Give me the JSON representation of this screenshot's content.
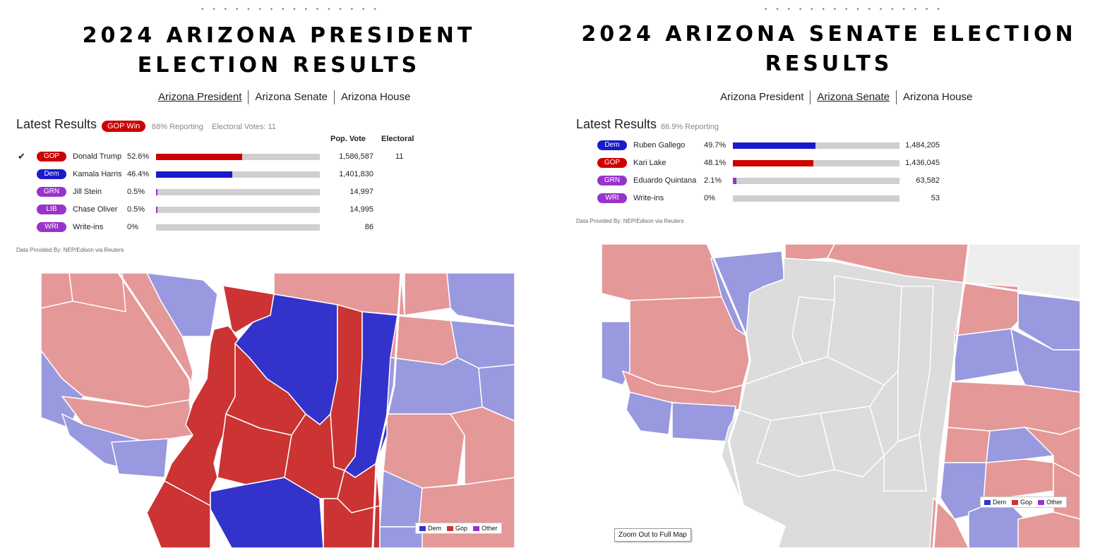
{
  "colors": {
    "dem": "#1a1acc",
    "gop": "#cc0000",
    "grn": "#9933cc",
    "lib": "#9933cc",
    "wri": "#9933cc",
    "gop_dark": "#cc3333",
    "gop_light": "#e59898",
    "dem_dark": "#3333cc",
    "dem_light": "#9999e0",
    "none": "#dcdcdc"
  },
  "president": {
    "dots": "• • • • • • • • • • • • • • • •",
    "title": "2024 ARIZONA PRESIDENT ELECTION RESULTS",
    "nav": [
      "Arizona President",
      "Arizona Senate",
      "Arizona House"
    ],
    "active_nav": 0,
    "results_title": "Latest Results",
    "badge": "GOP Win",
    "reporting": "88% Reporting",
    "electoral_votes": "Electoral Votes: 11",
    "col_pop": "Pop. Vote",
    "col_electoral": "Electoral",
    "candidates": [
      {
        "party": "GOP",
        "name": "Donald Trump",
        "pct": "52.6%",
        "share": 52.6,
        "votes": "1,586,587",
        "electoral": "11",
        "winner": true
      },
      {
        "party": "Dem",
        "name": "Kamala Harris",
        "pct": "46.4%",
        "share": 46.4,
        "votes": "1,401,830",
        "electoral": "",
        "winner": false
      },
      {
        "party": "GRN",
        "name": "Jill Stein",
        "pct": "0.5%",
        "share": 0.5,
        "votes": "14,997",
        "electoral": "",
        "winner": false
      },
      {
        "party": "LIB",
        "name": "Chase Oliver",
        "pct": "0.5%",
        "share": 0.5,
        "votes": "14,995",
        "electoral": "",
        "winner": false
      },
      {
        "party": "WRI",
        "name": "Write-ins",
        "pct": "0%",
        "share": 0,
        "votes": "86",
        "electoral": "",
        "winner": false
      }
    ],
    "source": "Data Provided By: NEP/Edison via Reuters",
    "legend": [
      "Dem",
      "Gop",
      "Other"
    ]
  },
  "senate": {
    "dots": "• • • • • • • • • • • • • • • •",
    "title": "2024 ARIZONA SENATE ELECTION RESULTS",
    "nav": [
      "Arizona President",
      "Arizona Senate",
      "Arizona House"
    ],
    "active_nav": 1,
    "results_title": "Latest Results",
    "reporting": "86.9% Reporting",
    "candidates": [
      {
        "party": "Dem",
        "name": "Ruben Gallego",
        "pct": "49.7%",
        "share": 49.7,
        "votes": "1,484,205"
      },
      {
        "party": "GOP",
        "name": "Kari Lake",
        "pct": "48.1%",
        "share": 48.1,
        "votes": "1,436,045"
      },
      {
        "party": "GRN",
        "name": "Eduardo Quintana",
        "pct": "2.1%",
        "share": 2.1,
        "votes": "63,582"
      },
      {
        "party": "WRI",
        "name": "Write-ins",
        "pct": "0%",
        "share": 0,
        "votes": "53"
      }
    ],
    "source": "Data Provided By: NEP/Edison via Reuters",
    "legend": [
      "Dem",
      "Gop",
      "Other"
    ],
    "zoom_label": "Zoom Out to Full Map"
  }
}
